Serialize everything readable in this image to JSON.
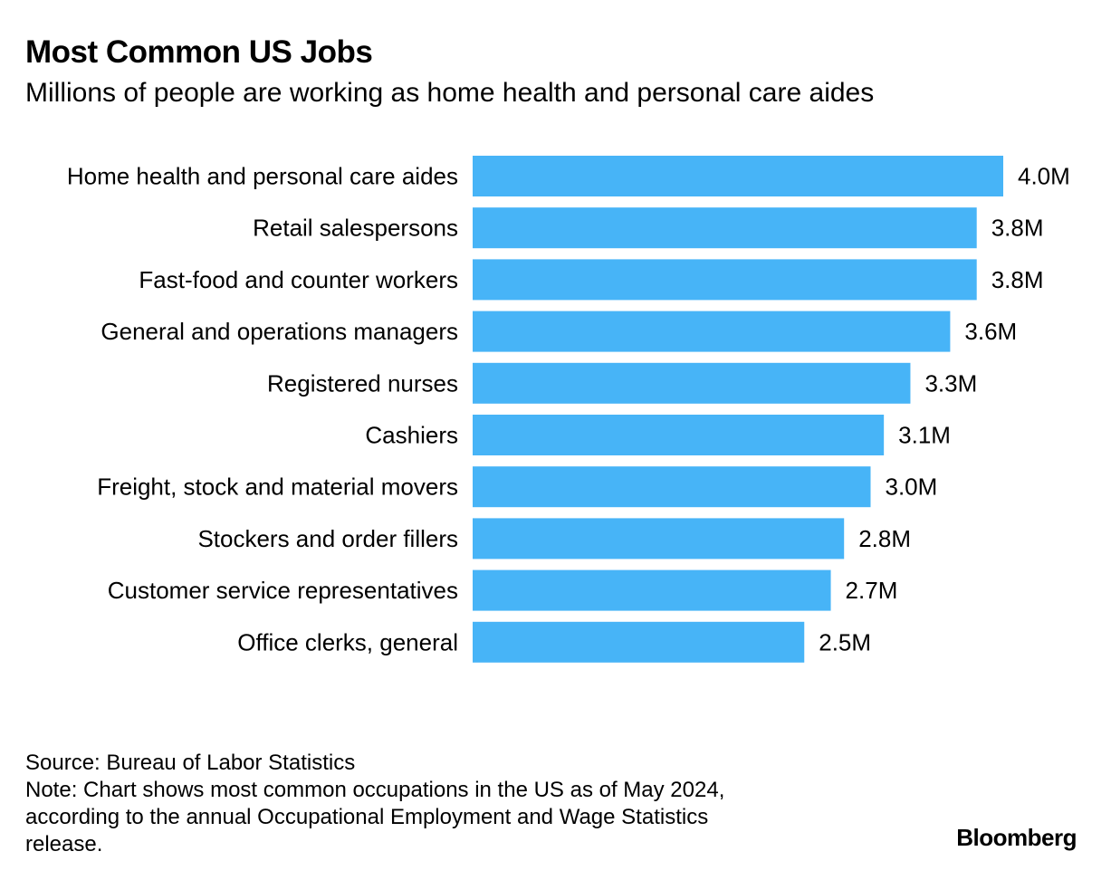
{
  "header": {
    "title": "Most Common US Jobs",
    "subtitle": "Millions of people are working as home health and personal care aides"
  },
  "chart_data": {
    "type": "bar",
    "orientation": "horizontal",
    "categories": [
      "Home health and personal care aides",
      "Retail salespersons",
      "Fast-food and counter workers",
      "General and operations managers",
      "Registered nurses",
      "Cashiers",
      "Freight, stock and material movers",
      "Stockers and order fillers",
      "Customer service representatives",
      "Office clerks, general"
    ],
    "values": [
      4.0,
      3.8,
      3.8,
      3.6,
      3.3,
      3.1,
      3.0,
      2.8,
      2.7,
      2.5
    ],
    "data_labels": [
      "4.0M",
      "3.8M",
      "3.8M",
      "3.6M",
      "3.3M",
      "3.1M",
      "3.0M",
      "2.8M",
      "2.7M",
      "2.5M"
    ],
    "bar_color": "#47b4f7",
    "xlim": [
      0,
      4.0
    ],
    "grid": false,
    "legend": "none"
  },
  "footer": {
    "source": "Source: Bureau of Labor Statistics",
    "note": "Note: Chart shows most common occupations in the US as of May 2024, according to the annual Occupational Employment and Wage Statistics release.",
    "brand": "Bloomberg"
  }
}
